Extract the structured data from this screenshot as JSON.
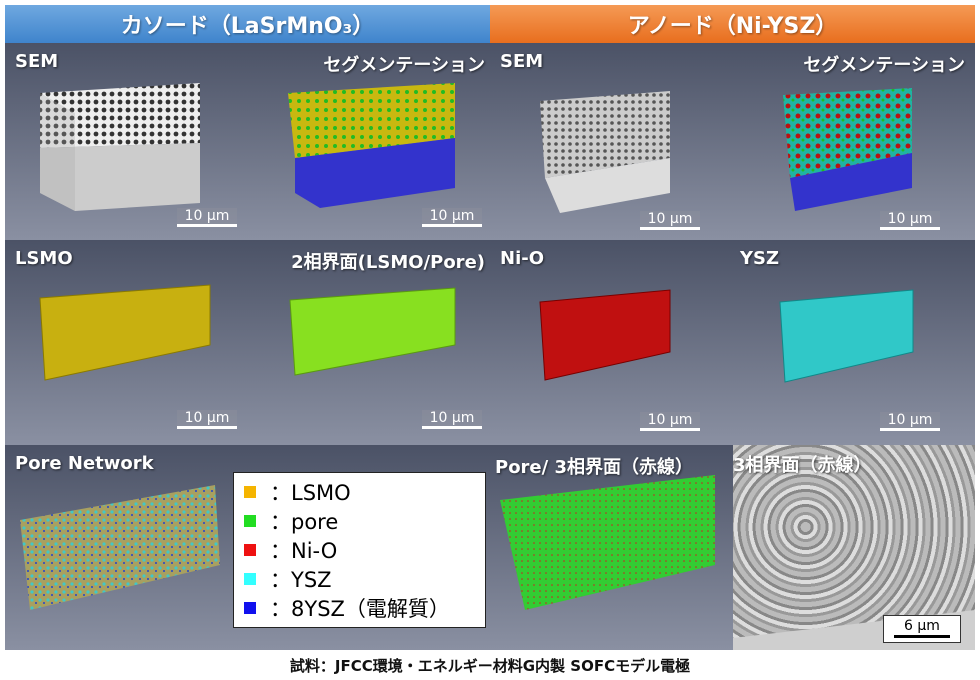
{
  "headers": {
    "cathode": "カソード（LaSrMnO₃）",
    "anode": "アノード（Ni-YSZ）"
  },
  "panels": {
    "row1": [
      "SEM",
      "セグメンテーション",
      "SEM",
      "セグメンテーション"
    ],
    "row2": [
      "LSMO",
      "2相界面(LSMO/Pore)",
      "Ni-O",
      "YSZ"
    ],
    "row3": [
      "Pore Network",
      "Pore/ 3相界面（赤線）",
      "3相界面（赤線）"
    ]
  },
  "scale_bars": {
    "ten": "10 µm",
    "six": "6 µm"
  },
  "legend": [
    {
      "label": "：LSMO",
      "color": "#f5b400"
    },
    {
      "label": "：pore",
      "color": "#22dd22"
    },
    {
      "label": "：Ni-O",
      "color": "#ee1111"
    },
    {
      "label": "：YSZ",
      "color": "#33ffff"
    },
    {
      "label": "：8YSZ（電解質）",
      "color": "#1111ee"
    }
  ],
  "caption": "試料：JFCC環境・エネルギー材料G内製 SOFCモデル電極"
}
